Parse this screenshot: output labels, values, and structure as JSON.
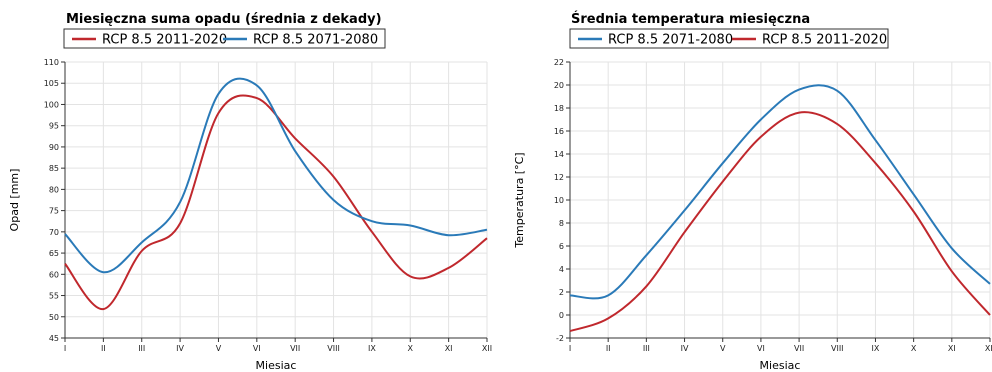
{
  "chart_data": [
    {
      "type": "line",
      "title": "Miesięczna suma opadu (średnia z dekady)",
      "xlabel": "Miesiac",
      "ylabel": "Opad [mm]",
      "categories": [
        "I",
        "II",
        "III",
        "IV",
        "V",
        "VI",
        "VII",
        "VIII",
        "IX",
        "X",
        "XI",
        "XII"
      ],
      "ylim": [
        45,
        110
      ],
      "yticks": [
        45,
        50,
        55,
        60,
        65,
        70,
        75,
        80,
        85,
        90,
        95,
        100,
        105,
        110
      ],
      "grid": true,
      "legend_position": "top",
      "series": [
        {
          "name": "RCP 8.5 2011-2020",
          "color": "#c0282d",
          "values": [
            62.5,
            51.8,
            65.5,
            72,
            98,
            101.5,
            92,
            83,
            70,
            59.5,
            61.5,
            68.5
          ]
        },
        {
          "name": "RCP 8.5 2071-2080",
          "color": "#2a7ab8",
          "values": [
            69.5,
            60.5,
            67.5,
            77,
            102.5,
            104.5,
            89,
            77.5,
            72.5,
            71.5,
            69.2,
            70.5
          ]
        }
      ]
    },
    {
      "type": "line",
      "title": "Średnia temperatura miesięczna",
      "xlabel": "Miesiac",
      "ylabel": "Temperatura [°C]",
      "categories": [
        "I",
        "II",
        "III",
        "IV",
        "V",
        "VI",
        "VII",
        "VIII",
        "IX",
        "X",
        "XI",
        "XII"
      ],
      "ylim": [
        -2,
        22
      ],
      "yticks": [
        -2,
        0,
        2,
        4,
        6,
        8,
        10,
        12,
        14,
        16,
        18,
        20,
        22
      ],
      "grid": true,
      "legend_position": "top",
      "series": [
        {
          "name": "RCP 8.5 2071-2080",
          "color": "#2a7ab8",
          "values": [
            1.7,
            1.7,
            5.2,
            9.1,
            13.2,
            17,
            19.6,
            19.5,
            15.2,
            10.5,
            5.8,
            2.7
          ]
        },
        {
          "name": "RCP 8.5 2011-2020",
          "color": "#c0282d",
          "values": [
            -1.4,
            -0.3,
            2.5,
            7.2,
            11.6,
            15.5,
            17.6,
            16.6,
            13.2,
            9,
            3.8,
            0
          ]
        }
      ]
    }
  ]
}
